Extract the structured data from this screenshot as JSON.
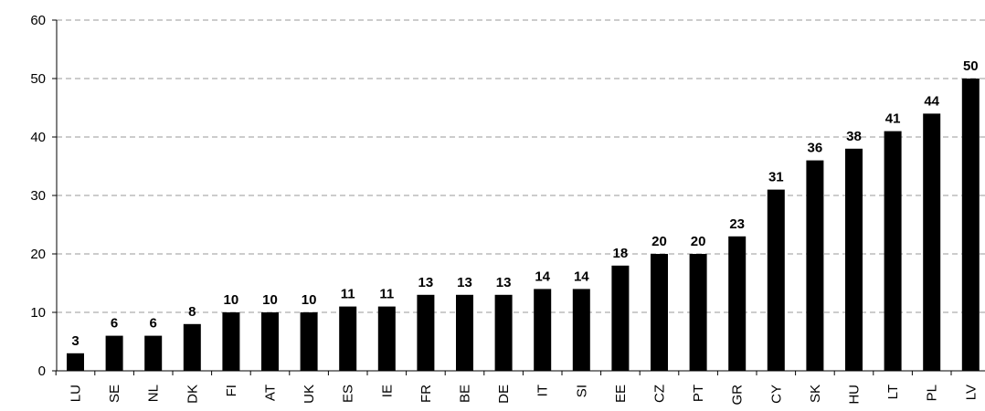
{
  "chart_data": {
    "type": "bar",
    "title": "",
    "xlabel": "",
    "ylabel": "",
    "ylim": [
      0,
      60
    ],
    "yticks": [
      0,
      10,
      20,
      30,
      40,
      50,
      60
    ],
    "grid": "horizontal-dashed",
    "bar_color": "#000000",
    "gridline_color": "#9a9a9a",
    "categories": [
      "LU",
      "SE",
      "NL",
      "DK",
      "FI",
      "AT",
      "UK",
      "ES",
      "IE",
      "FR",
      "BE",
      "DE",
      "IT",
      "SI",
      "EE",
      "CZ",
      "PT",
      "GR",
      "CY",
      "SK",
      "HU",
      "LT",
      "PL",
      "LV"
    ],
    "values": [
      3,
      6,
      6,
      8,
      10,
      10,
      10,
      11,
      11,
      13,
      13,
      13,
      14,
      14,
      18,
      20,
      20,
      23,
      31,
      36,
      38,
      41,
      44,
      50
    ],
    "data_labels": [
      "3",
      "6",
      "6",
      "8",
      "10",
      "10",
      "10",
      "11",
      "11",
      "13",
      "13",
      "13",
      "14",
      "14",
      "18",
      "20",
      "20",
      "23",
      "31",
      "36",
      "38",
      "41",
      "44",
      "50"
    ]
  }
}
